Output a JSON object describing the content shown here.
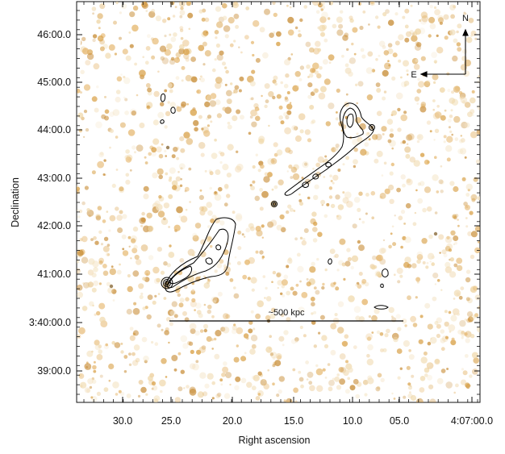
{
  "figure": {
    "y_axis": {
      "title": "Declination",
      "ticks": [
        "46:00.0",
        "45:00.0",
        "44:00.0",
        "43:00.0",
        "42:00.0",
        "41:00.0",
        "3:40:00.0",
        "39:00.0"
      ]
    },
    "x_axis": {
      "title": "Right ascension",
      "ticks": [
        "30.0",
        "25.0",
        "20.0",
        "15.0",
        "10.0",
        "05.0",
        "4:07:00.0"
      ]
    },
    "compass": {
      "north": "N",
      "east": "E"
    },
    "scale_bar": {
      "label": "~500 kpc"
    },
    "colors": {
      "background": "#ffffff",
      "emission": "#d9a24a",
      "emission_light": "#efd7a8",
      "contours": "#000000"
    }
  }
}
